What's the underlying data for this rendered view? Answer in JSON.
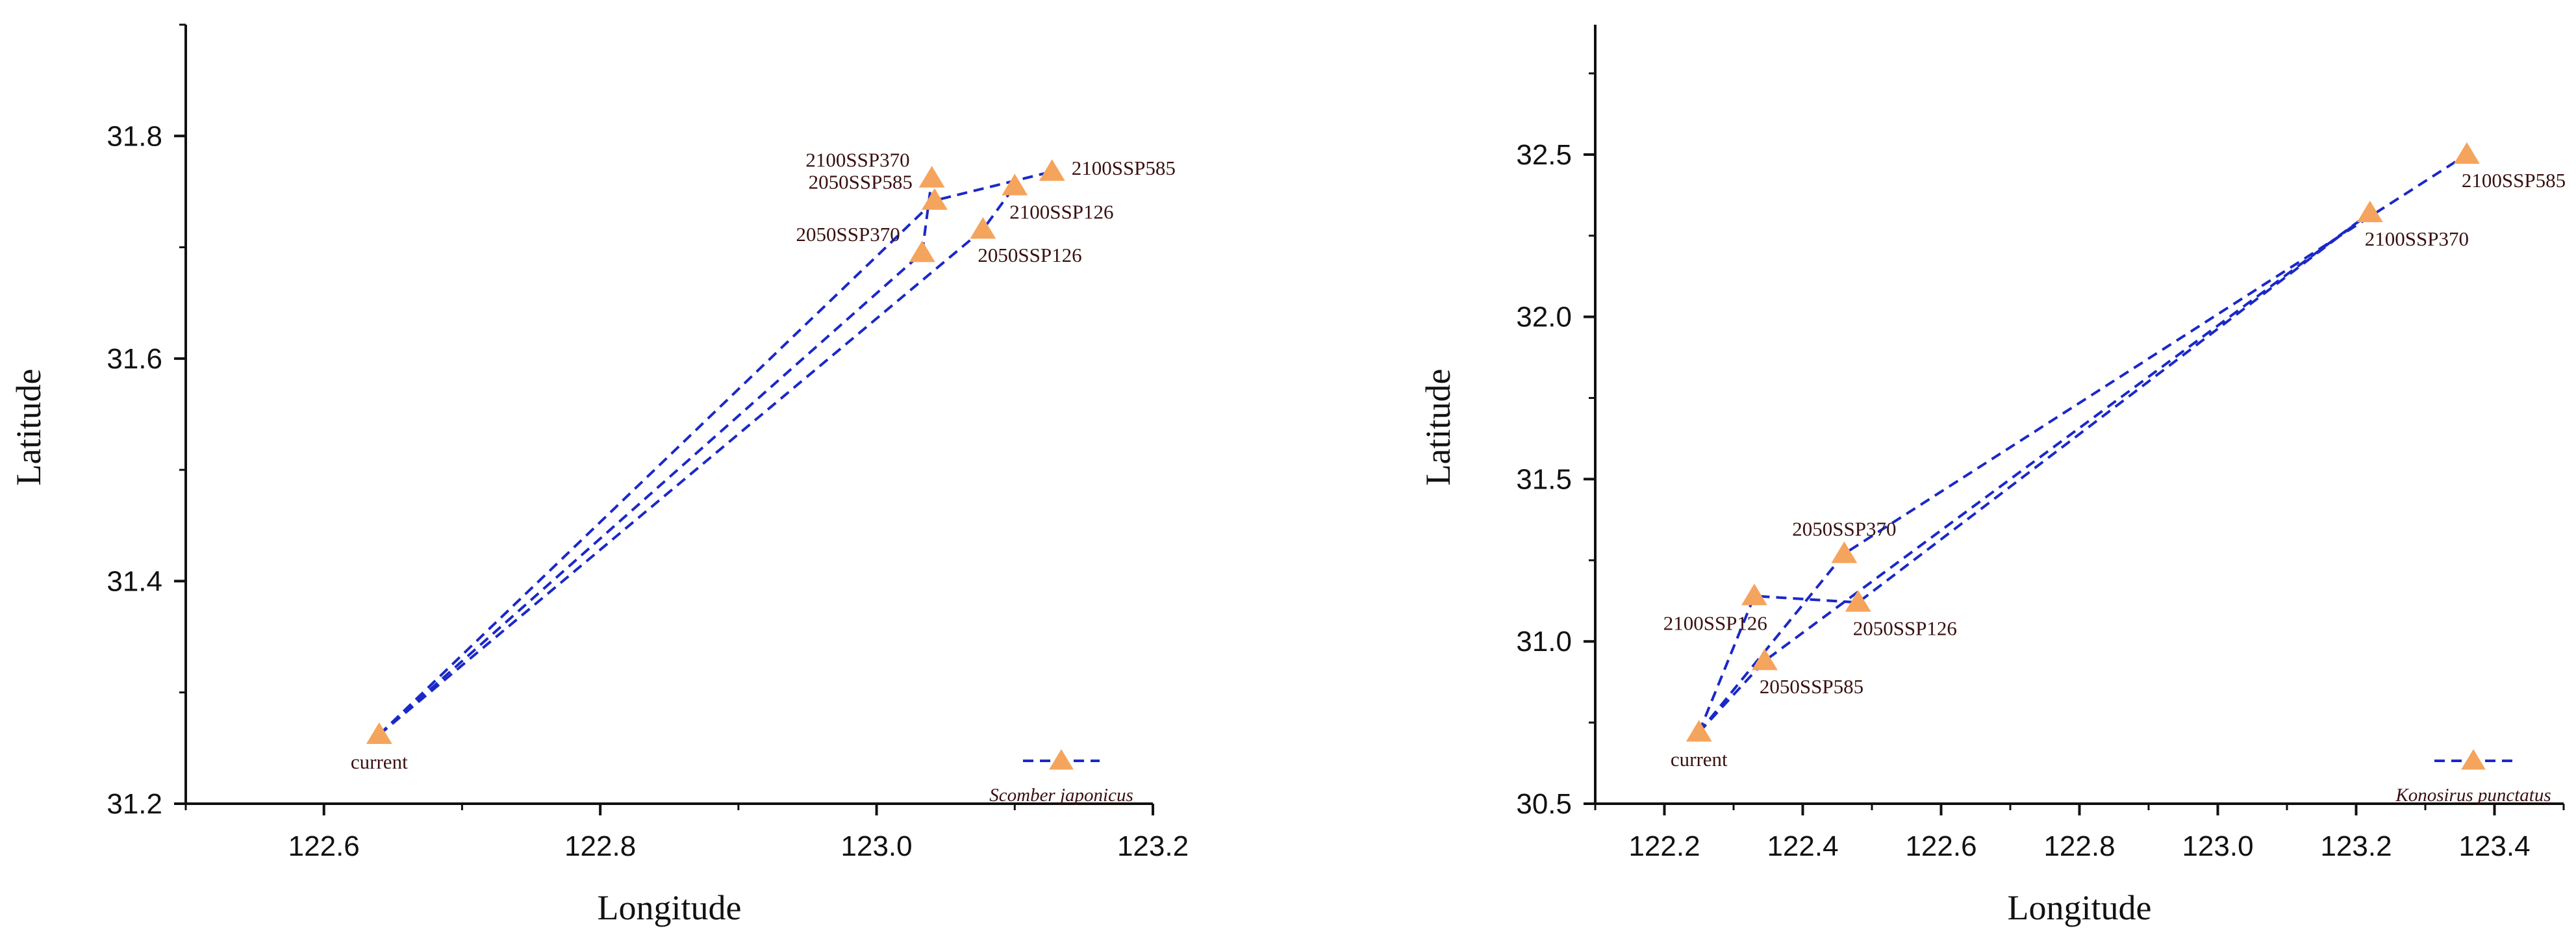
{
  "colors": {
    "marker": "#f5a45d",
    "line": "#1a28c8",
    "axis": "#111111"
  },
  "chart_data": [
    {
      "type": "scatter",
      "title": "",
      "xlabel": "Longitude",
      "ylabel": "Latitude",
      "xlim": [
        122.5,
        123.2
      ],
      "ylim": [
        31.2,
        31.9
      ],
      "xticks": [
        {
          "value": 122.6,
          "label": "122.6"
        },
        {
          "value": 122.8,
          "label": "122.8"
        },
        {
          "value": 123.0,
          "label": "123.0"
        },
        {
          "value": 123.2,
          "label": "123.2"
        }
      ],
      "yticks": [
        {
          "value": 31.2,
          "label": "31.2"
        },
        {
          "value": 31.4,
          "label": "31.4"
        },
        {
          "value": 31.6,
          "label": "31.6"
        },
        {
          "value": 31.8,
          "label": "31.8"
        }
      ],
      "grid": false,
      "legend": {
        "label": "Scomber japonicus",
        "placement": "bottom-right"
      },
      "origin": "current",
      "points": [
        {
          "label": "current",
          "x": 122.64,
          "y": 31.262,
          "label_pos": "below"
        },
        {
          "label": "2100SSP370",
          "x": 123.04,
          "y": 31.762,
          "label_pos": "left"
        },
        {
          "label": "2100SSP585",
          "x": 123.127,
          "y": 31.768,
          "label_pos": "right"
        },
        {
          "label": "2050SSP585",
          "x": 123.042,
          "y": 31.742,
          "label_pos": "left"
        },
        {
          "label": "2100SSP126",
          "x": 123.1,
          "y": 31.755,
          "label_pos": "below-right"
        },
        {
          "label": "2050SSP370",
          "x": 123.033,
          "y": 31.695,
          "label_pos": "left"
        },
        {
          "label": "2050SSP126",
          "x": 123.077,
          "y": 31.716,
          "label_pos": "below-right"
        }
      ],
      "paths": [
        [
          "current",
          "2050SSP370",
          "2100SSP370"
        ],
        [
          "current",
          "2050SSP585",
          "2100SSP585"
        ],
        [
          "current",
          "2050SSP126",
          "2100SSP126"
        ]
      ]
    },
    {
      "type": "scatter",
      "title": "",
      "xlabel": "Longitude",
      "ylabel": "Latitude",
      "xlim": [
        122.1,
        123.5
      ],
      "ylim": [
        30.5,
        32.9
      ],
      "xticks": [
        {
          "value": 122.2,
          "label": "122.2"
        },
        {
          "value": 122.4,
          "label": "122.4"
        },
        {
          "value": 122.6,
          "label": "122.6"
        },
        {
          "value": 122.8,
          "label": "122.8"
        },
        {
          "value": 123.0,
          "label": "123.0"
        },
        {
          "value": 123.2,
          "label": "123.2"
        },
        {
          "value": 123.4,
          "label": "123.4"
        }
      ],
      "yticks": [
        {
          "value": 30.5,
          "label": "30.5"
        },
        {
          "value": 31.0,
          "label": "31.0"
        },
        {
          "value": 31.5,
          "label": "31.5"
        },
        {
          "value": 32.0,
          "label": "32.0"
        },
        {
          "value": 32.5,
          "label": "32.5"
        }
      ],
      "grid": false,
      "legend": {
        "label": "Konosirus punctatus",
        "placement": "bottom-right"
      },
      "origin": "current",
      "points": [
        {
          "label": "current",
          "x": 122.25,
          "y": 30.72,
          "label_pos": "below"
        },
        {
          "label": "2050SSP370",
          "x": 122.46,
          "y": 31.27,
          "label_pos": "above"
        },
        {
          "label": "2100SSP126",
          "x": 122.33,
          "y": 31.14,
          "label_pos": "below-left"
        },
        {
          "label": "2050SSP126",
          "x": 122.48,
          "y": 31.12,
          "label_pos": "below-right"
        },
        {
          "label": "2050SSP585",
          "x": 122.345,
          "y": 30.94,
          "label_pos": "below-right"
        },
        {
          "label": "2100SSP370",
          "x": 123.22,
          "y": 32.32,
          "label_pos": "below-right"
        },
        {
          "label": "2100SSP585",
          "x": 123.36,
          "y": 32.5,
          "label_pos": "below-right"
        }
      ],
      "paths": [
        [
          "current",
          "2100SSP126",
          "2050SSP126",
          "2100SSP370"
        ],
        [
          "current",
          "2050SSP370",
          "2100SSP585"
        ],
        [
          "current",
          "2050SSP585",
          "2100SSP370"
        ]
      ]
    }
  ]
}
